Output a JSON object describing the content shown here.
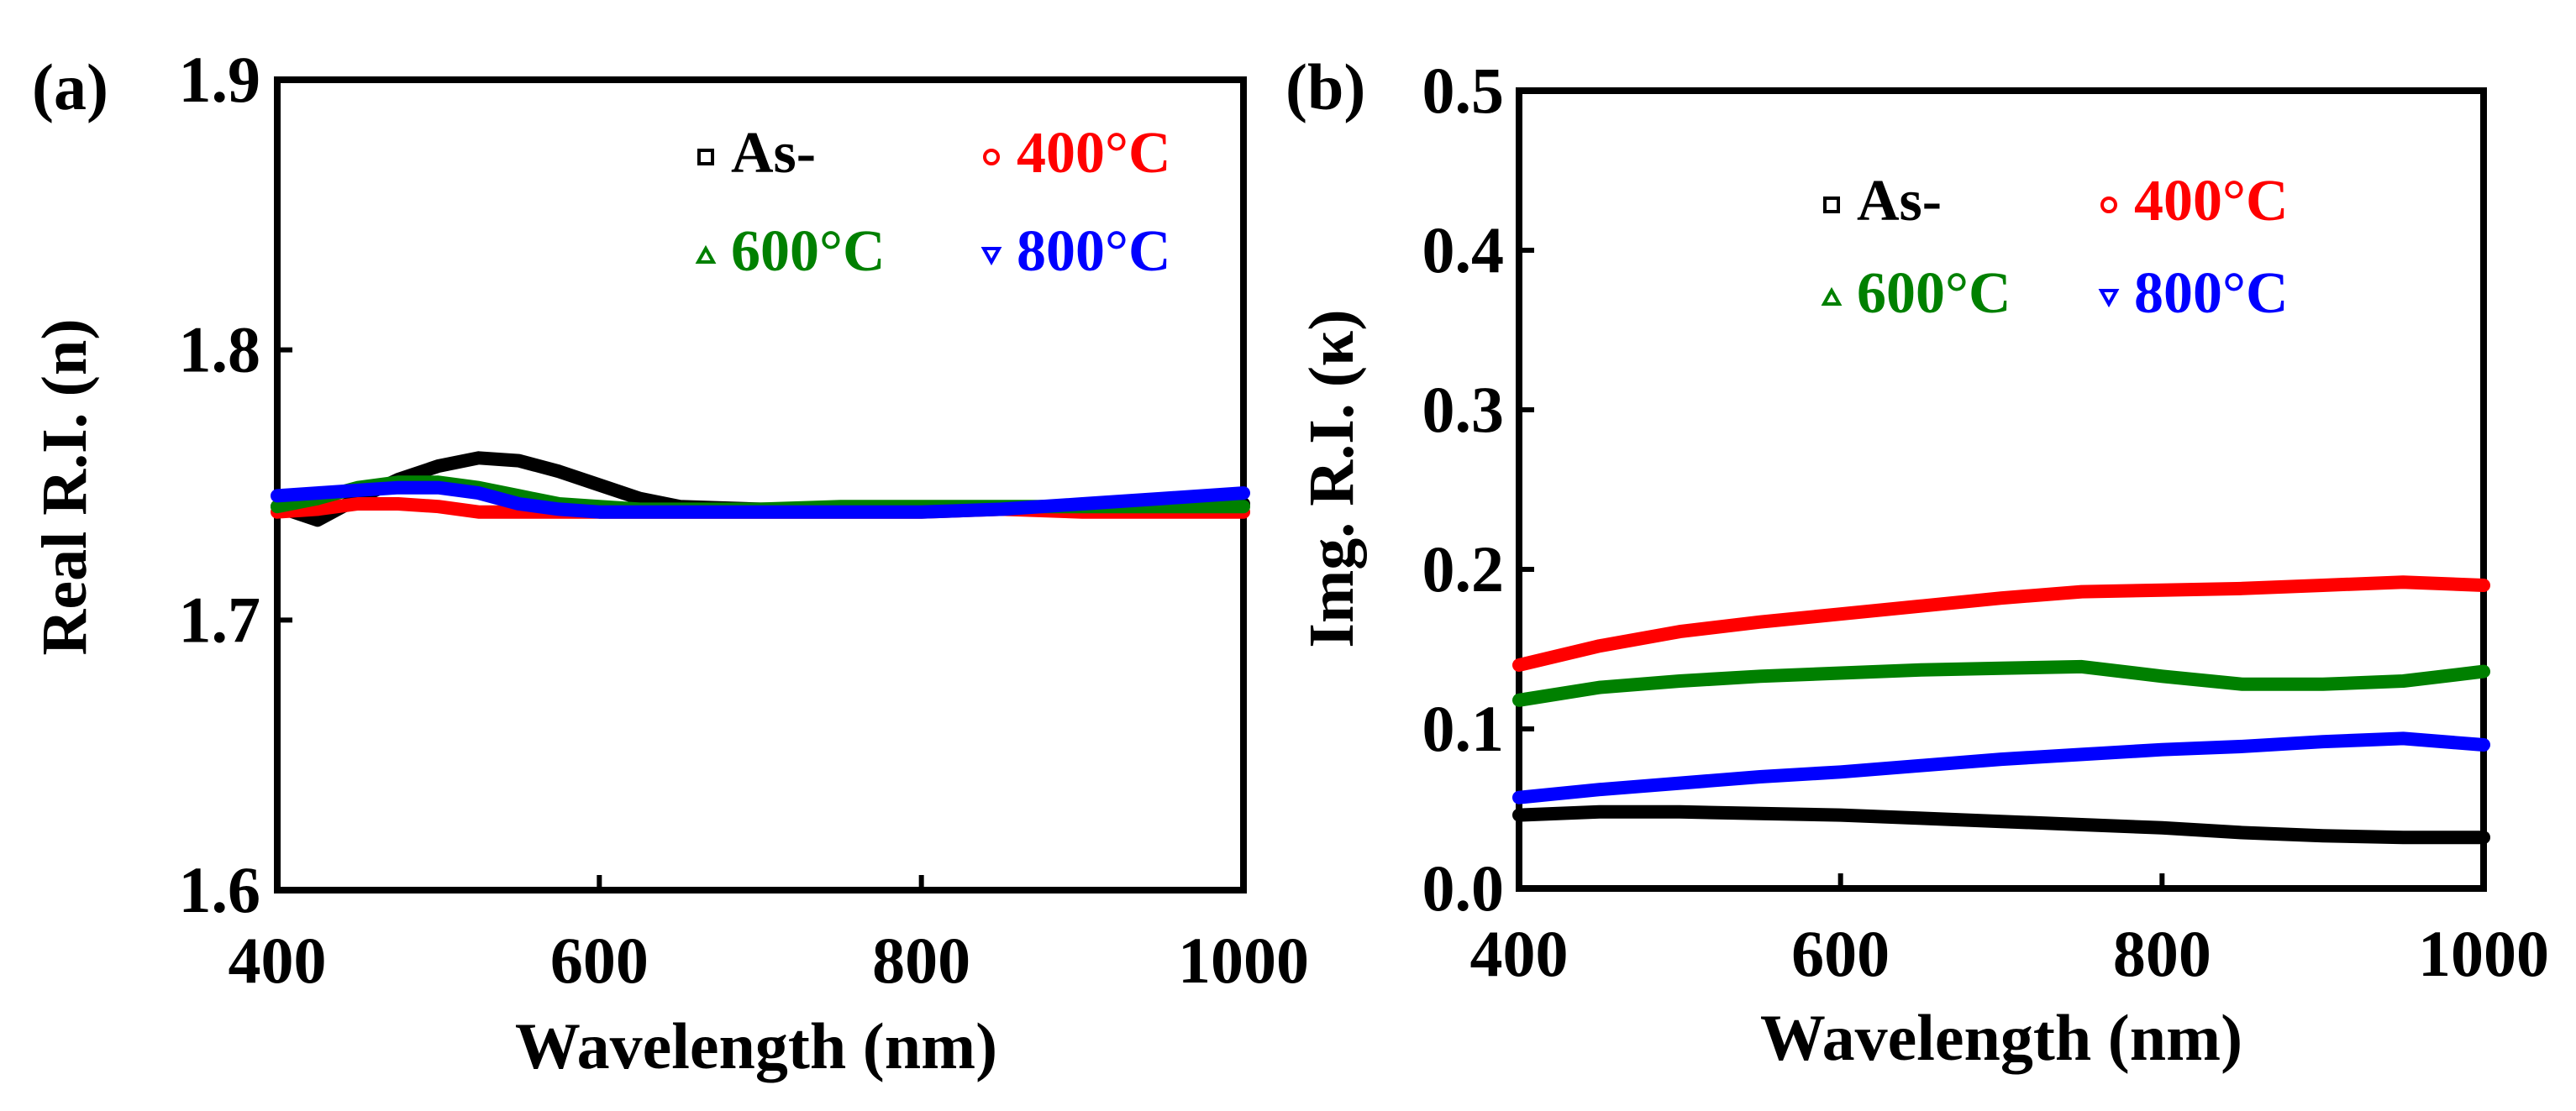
{
  "chart_data": [
    {
      "type": "line",
      "panel_label": "(a)",
      "title": "",
      "xlabel": "Wavelength (nm)",
      "ylabel": "Real R.I. (n)",
      "xlim": [
        400,
        1000
      ],
      "ylim": [
        1.6,
        1.9
      ],
      "x_ticks": [
        "400",
        "600",
        "800",
        "1000"
      ],
      "y_ticks": [
        "1.6",
        "1.7",
        "1.8",
        "1.9"
      ],
      "grid": false,
      "legend_position": "top-right",
      "x": [
        400,
        425,
        450,
        475,
        500,
        525,
        550,
        575,
        600,
        625,
        650,
        700,
        750,
        800,
        850,
        900,
        950,
        1000
      ],
      "series": [
        {
          "name": "As-",
          "color": "#000000",
          "marker": "square",
          "values": [
            1.742,
            1.737,
            1.745,
            1.752,
            1.757,
            1.76,
            1.759,
            1.755,
            1.75,
            1.745,
            1.742,
            1.741,
            1.741,
            1.741,
            1.741,
            1.742,
            1.743,
            1.743
          ]
        },
        {
          "name": "400°C",
          "color": "#ff0000",
          "marker": "circle",
          "values": [
            1.74,
            1.741,
            1.743,
            1.743,
            1.742,
            1.74,
            1.74,
            1.74,
            1.74,
            1.74,
            1.74,
            1.74,
            1.74,
            1.74,
            1.741,
            1.74,
            1.74,
            1.74
          ]
        },
        {
          "name": "600°C",
          "color": "#008000",
          "marker": "triangle-up",
          "values": [
            1.742,
            1.745,
            1.749,
            1.751,
            1.751,
            1.749,
            1.746,
            1.743,
            1.742,
            1.741,
            1.741,
            1.741,
            1.742,
            1.742,
            1.742,
            1.742,
            1.742,
            1.742
          ]
        },
        {
          "name": "800°C",
          "color": "#0000ff",
          "marker": "triangle-down",
          "values": [
            1.746,
            1.747,
            1.748,
            1.749,
            1.749,
            1.747,
            1.743,
            1.741,
            1.74,
            1.74,
            1.74,
            1.74,
            1.74,
            1.74,
            1.741,
            1.743,
            1.745,
            1.747
          ]
        }
      ]
    },
    {
      "type": "line",
      "panel_label": "(b)",
      "title": "",
      "xlabel": "Wavelength (nm)",
      "ylabel": "Img. R.I. (κ)",
      "xlim": [
        400,
        1000
      ],
      "ylim": [
        0.0,
        0.5
      ],
      "x_ticks": [
        "400",
        "600",
        "800",
        "1000"
      ],
      "y_ticks": [
        "0.0",
        "0.1",
        "0.2",
        "0.3",
        "0.4",
        "0.5"
      ],
      "grid": false,
      "legend_position": "top-right",
      "x": [
        400,
        450,
        500,
        550,
        600,
        650,
        700,
        750,
        800,
        850,
        900,
        950,
        1000
      ],
      "series": [
        {
          "name": "As-",
          "color": "#000000",
          "marker": "square",
          "values": [
            0.046,
            0.048,
            0.048,
            0.047,
            0.046,
            0.044,
            0.042,
            0.04,
            0.038,
            0.035,
            0.033,
            0.032,
            0.032
          ]
        },
        {
          "name": "400°C",
          "color": "#ff0000",
          "marker": "circle",
          "values": [
            0.14,
            0.152,
            0.161,
            0.167,
            0.172,
            0.177,
            0.182,
            0.186,
            0.187,
            0.188,
            0.19,
            0.192,
            0.19
          ]
        },
        {
          "name": "600°C",
          "color": "#008000",
          "marker": "triangle-up",
          "values": [
            0.118,
            0.126,
            0.13,
            0.133,
            0.135,
            0.137,
            0.138,
            0.139,
            0.133,
            0.128,
            0.128,
            0.13,
            0.136
          ]
        },
        {
          "name": "800°C",
          "color": "#0000ff",
          "marker": "triangle-down",
          "values": [
            0.057,
            0.062,
            0.066,
            0.07,
            0.073,
            0.077,
            0.081,
            0.084,
            0.087,
            0.089,
            0.092,
            0.094,
            0.09
          ]
        }
      ]
    }
  ]
}
